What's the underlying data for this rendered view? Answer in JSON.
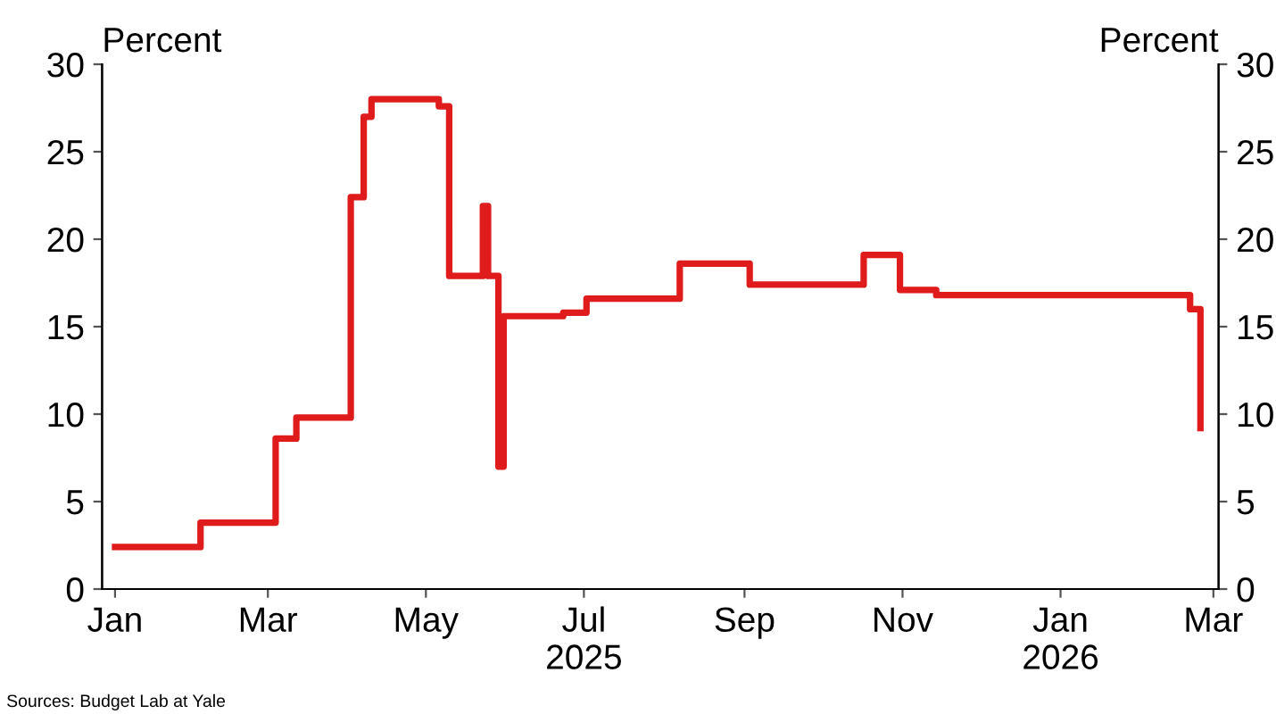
{
  "chart_data": {
    "type": "step",
    "ylabel": "Percent",
    "y2label": "Percent",
    "x": [
      "2025-01-01",
      "2025-02-03",
      "2025-03-04",
      "2025-03-12",
      "2025-04-02",
      "2025-04-07",
      "2025-04-10",
      "2025-05-06",
      "2025-05-10",
      "2025-05-23",
      "2025-05-25",
      "2025-05-29",
      "2025-05-31",
      "2025-06-23",
      "2025-07-02",
      "2025-08-07",
      "2025-09-03",
      "2025-10-17",
      "2025-10-31",
      "2025-11-14",
      "2026-02-20",
      "2026-02-24"
    ],
    "series": [
      {
        "color": "#e01b1b",
        "values": [
          2.4,
          3.8,
          8.6,
          9.8,
          22.4,
          27.0,
          28.0,
          27.6,
          17.9,
          21.9,
          17.9,
          7.0,
          15.6,
          15.8,
          16.6,
          18.6,
          17.4,
          19.1,
          17.1,
          16.8,
          16.0,
          9.2
        ]
      }
    ],
    "xlim": [
      "2024-12-27",
      "2026-03-03"
    ],
    "xticks": [
      {
        "value": "2025-01-01",
        "label": "Jan"
      },
      {
        "value": "2025-03-01",
        "label": "Mar"
      },
      {
        "value": "2025-05-01",
        "label": "May"
      },
      {
        "value": "2025-07-01",
        "label": "Jul\n2025"
      },
      {
        "value": "2025-09-01",
        "label": "Sep"
      },
      {
        "value": "2025-11-01",
        "label": "Nov"
      },
      {
        "value": "2026-01-01",
        "label": "Jan\n2026"
      },
      {
        "value": "2026-03-01",
        "label": "Mar"
      }
    ],
    "ylim": [
      0,
      30
    ],
    "yticks": [
      0,
      5,
      10,
      15,
      20,
      25,
      30
    ],
    "y2lim": [
      0,
      30
    ],
    "y2ticks": [
      0,
      5,
      10,
      15,
      20,
      25,
      30
    ],
    "grid": false,
    "legend": false,
    "line_style": "solid",
    "annotations": [
      "Sources: Budget Lab at Yale"
    ]
  }
}
